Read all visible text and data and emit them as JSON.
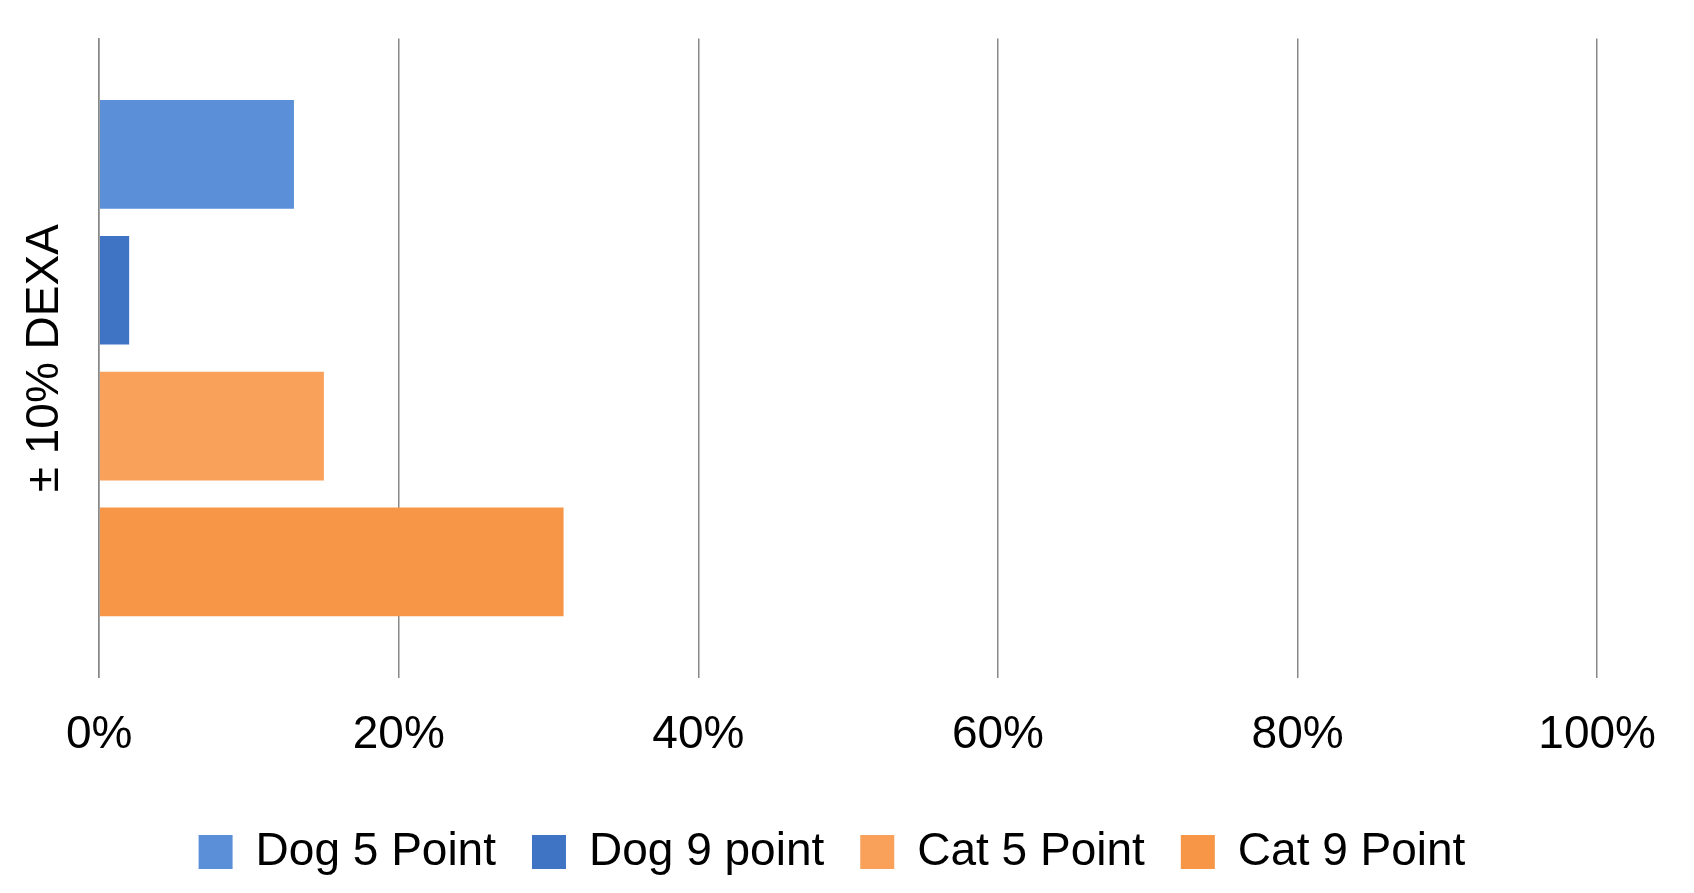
{
  "chart_data": {
    "type": "bar",
    "orientation": "horizontal",
    "categories": [
      null
    ],
    "ylabel": "± 10% DEXA",
    "series": [
      {
        "name": "Dog 5 Point",
        "color": "#5b8fd8",
        "values": [
          13
        ]
      },
      {
        "name": "Dog 9 point",
        "color": "#3f73c4",
        "values": [
          2
        ]
      },
      {
        "name": "Cat 5 Point",
        "color": "#f9a05a",
        "values": [
          15
        ]
      },
      {
        "name": "Cat 9 Point",
        "color": "#f79646",
        "values": [
          31
        ]
      }
    ],
    "xlim": [
      0,
      100
    ],
    "xticks": [
      {
        "value": 0,
        "label": "0%"
      },
      {
        "value": 20,
        "label": "20%"
      },
      {
        "value": 40,
        "label": "40%"
      },
      {
        "value": 60,
        "label": "60%"
      },
      {
        "value": 80,
        "label": "80%"
      },
      {
        "value": 100,
        "label": "100%"
      }
    ],
    "grid": "x",
    "legend": "bottom"
  }
}
